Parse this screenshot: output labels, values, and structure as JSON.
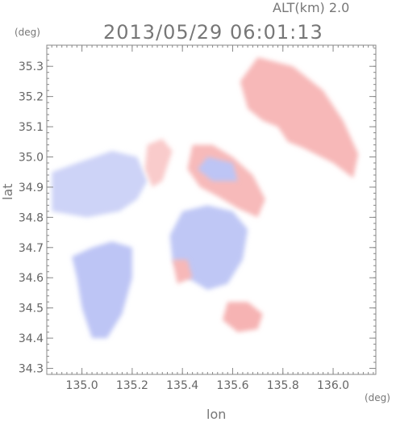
{
  "header": {
    "alt_label": "ALT(km) 2.0",
    "timestamp": "2013/05/29 06:01:13"
  },
  "chart_data": {
    "type": "heatmap",
    "title": "2013/05/29 06:01:13",
    "subtitle": "ALT(km) 2.0",
    "xlabel": "lon",
    "ylabel": "lat",
    "x_unit": "(deg)",
    "y_unit": "(deg)",
    "xlim": [
      134.86,
      136.17
    ],
    "ylim": [
      34.28,
      35.37
    ],
    "x_ticks": [
      {
        "value": 135.0,
        "label": "135.0"
      },
      {
        "value": 135.2,
        "label": "135.2"
      },
      {
        "value": 135.4,
        "label": "135.4"
      },
      {
        "value": 135.6,
        "label": "135.6"
      },
      {
        "value": 135.8,
        "label": "135.8"
      },
      {
        "value": 136.0,
        "label": "136.0"
      }
    ],
    "y_ticks": [
      {
        "value": 34.3,
        "label": "34.3"
      },
      {
        "value": 34.4,
        "label": "34.4"
      },
      {
        "value": 34.5,
        "label": "34.5"
      },
      {
        "value": 34.6,
        "label": "34.6"
      },
      {
        "value": 34.7,
        "label": "34.7"
      },
      {
        "value": 34.8,
        "label": "34.8"
      },
      {
        "value": 34.9,
        "label": "34.9"
      },
      {
        "value": 35.0,
        "label": "35.0"
      },
      {
        "value": 35.1,
        "label": "35.1"
      },
      {
        "value": 35.2,
        "label": "35.2"
      },
      {
        "value": 35.3,
        "label": "35.3"
      }
    ],
    "grid": false,
    "colors": {
      "approaching": "#aab4f2",
      "receding": "#f5aaaa",
      "neutral": "#ffffff"
    },
    "regions": [
      {
        "name": "northeast-red",
        "sign": 1,
        "intensity": 0.7,
        "points": [
          [
            135.7,
            35.33
          ],
          [
            135.84,
            35.3
          ],
          [
            135.96,
            35.22
          ],
          [
            136.04,
            35.12
          ],
          [
            136.1,
            35.01
          ],
          [
            136.08,
            34.93
          ],
          [
            136.0,
            34.98
          ],
          [
            135.88,
            35.03
          ],
          [
            135.82,
            35.05
          ],
          [
            135.78,
            35.1
          ],
          [
            135.72,
            35.12
          ],
          [
            135.66,
            35.16
          ],
          [
            135.63,
            35.25
          ]
        ]
      },
      {
        "name": "center-red",
        "sign": 1,
        "intensity": 0.65,
        "points": [
          [
            135.44,
            35.04
          ],
          [
            135.52,
            35.04
          ],
          [
            135.6,
            35.0
          ],
          [
            135.68,
            34.94
          ],
          [
            135.73,
            34.86
          ],
          [
            135.7,
            34.8
          ],
          [
            135.62,
            34.83
          ],
          [
            135.54,
            34.87
          ],
          [
            135.47,
            34.9
          ],
          [
            135.42,
            34.96
          ]
        ]
      },
      {
        "name": "center-blue-core",
        "sign": -1,
        "intensity": 0.6,
        "points": [
          [
            135.5,
            35.0
          ],
          [
            135.6,
            34.98
          ],
          [
            135.62,
            34.92
          ],
          [
            135.52,
            34.92
          ],
          [
            135.46,
            34.96
          ]
        ]
      },
      {
        "name": "west-blue",
        "sign": -1,
        "intensity": 0.25,
        "points": [
          [
            134.88,
            34.95
          ],
          [
            134.98,
            34.98
          ],
          [
            135.12,
            35.02
          ],
          [
            135.22,
            35.0
          ],
          [
            135.26,
            34.92
          ],
          [
            135.22,
            34.86
          ],
          [
            135.15,
            34.82
          ],
          [
            135.02,
            34.8
          ],
          [
            134.88,
            34.82
          ]
        ]
      },
      {
        "name": "west-red-band",
        "sign": 1,
        "intensity": 0.3,
        "points": [
          [
            135.26,
            35.04
          ],
          [
            135.32,
            35.06
          ],
          [
            135.36,
            35.02
          ],
          [
            135.32,
            34.92
          ],
          [
            135.28,
            34.9
          ],
          [
            135.25,
            34.96
          ]
        ]
      },
      {
        "name": "south-center-blue",
        "sign": -1,
        "intensity": 0.55,
        "points": [
          [
            135.4,
            34.82
          ],
          [
            135.5,
            34.84
          ],
          [
            135.6,
            34.82
          ],
          [
            135.66,
            34.76
          ],
          [
            135.64,
            34.66
          ],
          [
            135.58,
            34.58
          ],
          [
            135.5,
            34.56
          ],
          [
            135.42,
            34.6
          ],
          [
            135.36,
            34.66
          ],
          [
            135.35,
            34.74
          ]
        ]
      },
      {
        "name": "southwest-blue",
        "sign": -1,
        "intensity": 0.6,
        "points": [
          [
            134.96,
            34.67
          ],
          [
            135.04,
            34.7
          ],
          [
            135.12,
            34.72
          ],
          [
            135.2,
            34.7
          ],
          [
            135.2,
            34.6
          ],
          [
            135.16,
            34.48
          ],
          [
            135.1,
            34.4
          ],
          [
            135.04,
            34.4
          ],
          [
            135.0,
            34.5
          ],
          [
            134.98,
            34.6
          ]
        ]
      },
      {
        "name": "south-red-spots",
        "sign": 1,
        "intensity": 0.8,
        "points": [
          [
            135.58,
            34.52
          ],
          [
            135.66,
            34.52
          ],
          [
            135.72,
            34.48
          ],
          [
            135.7,
            34.43
          ],
          [
            135.62,
            34.42
          ],
          [
            135.56,
            34.46
          ]
        ]
      },
      {
        "name": "center-red-patch",
        "sign": 1,
        "intensity": 0.7,
        "points": [
          [
            135.36,
            34.66
          ],
          [
            135.42,
            34.66
          ],
          [
            135.44,
            34.6
          ],
          [
            135.38,
            34.58
          ]
        ]
      }
    ]
  }
}
